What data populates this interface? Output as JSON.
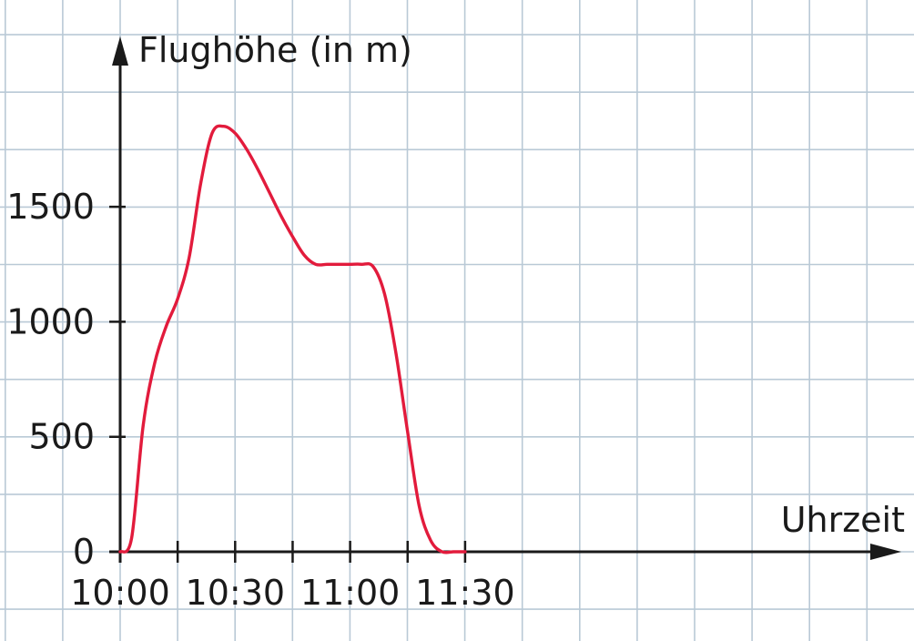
{
  "chart_data": {
    "type": "line",
    "ylabel": "Flughöhe (in m)",
    "xlabel": "Uhrzeit",
    "x_tick_labels": [
      "10:00",
      "10:30",
      "11:00",
      "11:30"
    ],
    "y_tick_labels": [
      "0",
      "500",
      "1000",
      "1500"
    ],
    "x_ticks": [
      "10:00",
      "10:15",
      "10:30",
      "10:45",
      "11:00",
      "11:15",
      "11:30"
    ],
    "y_ticks": [
      0,
      500,
      1000,
      1500
    ],
    "xlim": [
      "10:00",
      "11:30"
    ],
    "ylim": [
      0,
      1900
    ],
    "grid": true,
    "colors": {
      "line": "#e21b3c",
      "grid": "#b9c9d6",
      "axis": "#1a1a1a"
    },
    "series": [
      {
        "x": [
          "10:00",
          "10:03",
          "10:06",
          "10:09",
          "10:12",
          "10:15",
          "10:18",
          "10:21",
          "10:24",
          "10:27",
          "10:30",
          "10:33",
          "10:36",
          "10:39",
          "10:42",
          "10:45",
          "10:48",
          "10:51",
          "10:54",
          "10:57",
          "11:00",
          "11:03",
          "11:06",
          "11:09",
          "11:12",
          "11:15",
          "11:18",
          "11:21",
          "11:24",
          "11:27",
          "11:30"
        ],
        "y": [
          0,
          60,
          550,
          820,
          980,
          1100,
          1280,
          1600,
          1820,
          1850,
          1820,
          1750,
          1660,
          1560,
          1460,
          1370,
          1290,
          1250,
          1250,
          1250,
          1250,
          1250,
          1240,
          1120,
          860,
          520,
          200,
          50,
          0,
          0,
          0
        ]
      }
    ]
  }
}
